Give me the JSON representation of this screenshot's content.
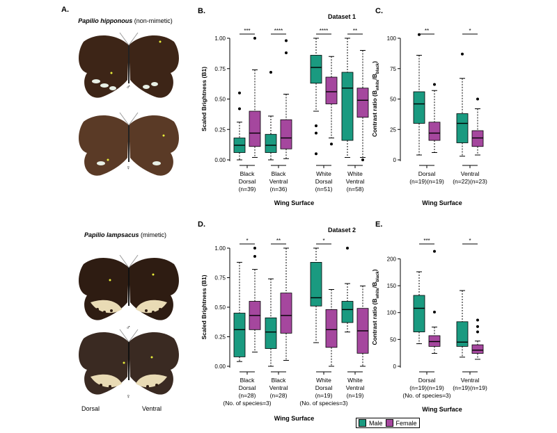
{
  "colors": {
    "male": "#1a9a80",
    "female": "#a5479e",
    "wing": "#3d2517",
    "spot": "#e8f0e6",
    "dot": "#e9ef3a"
  },
  "panel_a": {
    "letter": "A.",
    "species1": {
      "name": "Papilio hipponous",
      "note": "(non-mimetic)"
    },
    "species2": {
      "name": "Papilio lampsacus",
      "note": "(mimetic)"
    },
    "male_symbol": "♂",
    "female_symbol": "♀",
    "dorsal_label": "Dorsal",
    "ventral_label": "Ventral"
  },
  "legend": {
    "male": "Male",
    "female": "Female"
  },
  "chart_data": [
    {
      "panel": "B.",
      "type": "boxplot",
      "title": "Dataset 1",
      "ylabel": "Scaled Brightness (B1)",
      "xlabel": "Wing Surface",
      "ylim": [
        0,
        1
      ],
      "yticks": [
        "0.00",
        "0.25",
        "0.50",
        "0.75",
        "1.00"
      ],
      "groups": [
        {
          "label_lines": [
            "Black",
            "Dorsal",
            "(n=39)"
          ],
          "sig": "***",
          "boxes": [
            {
              "sex": "male",
              "min": 0.0,
              "q1": 0.06,
              "median": 0.12,
              "q3": 0.18,
              "max": 0.31,
              "outliers": [
                0.42,
                0.55
              ]
            },
            {
              "sex": "female",
              "min": 0.02,
              "q1": 0.11,
              "median": 0.22,
              "q3": 0.4,
              "max": 0.74,
              "outliers": [
                1.0
              ]
            }
          ]
        },
        {
          "label_lines": [
            "Black",
            "Ventral",
            "(n=36)"
          ],
          "sig": "****",
          "boxes": [
            {
              "sex": "male",
              "min": 0.0,
              "q1": 0.06,
              "median": 0.12,
              "q3": 0.21,
              "max": 0.36,
              "outliers": [
                0.72
              ]
            },
            {
              "sex": "female",
              "min": 0.01,
              "q1": 0.09,
              "median": 0.18,
              "q3": 0.33,
              "max": 0.54,
              "outliers": [
                0.88,
                0.98
              ]
            }
          ]
        },
        {
          "label_lines": [
            "White",
            "Dorsal",
            "(n=51)"
          ],
          "sig": "****",
          "boxes": [
            {
              "sex": "male",
              "min": 0.4,
              "q1": 0.63,
              "median": 0.76,
              "q3": 0.86,
              "max": 1.0,
              "outliers": [
                0.28,
                0.22,
                0.05
              ]
            },
            {
              "sex": "female",
              "min": 0.18,
              "q1": 0.46,
              "median": 0.56,
              "q3": 0.68,
              "max": 0.85,
              "outliers": [
                0.13
              ]
            }
          ]
        },
        {
          "label_lines": [
            "White",
            "Ventral",
            "(n=58)"
          ],
          "sig": "**",
          "boxes": [
            {
              "sex": "male",
              "min": 0.02,
              "q1": 0.16,
              "median": 0.59,
              "q3": 0.72,
              "max": 1.0,
              "outliers": []
            },
            {
              "sex": "female",
              "min": 0.02,
              "q1": 0.35,
              "median": 0.49,
              "q3": 0.59,
              "max": 0.9,
              "outliers": [
                0.0
              ]
            }
          ]
        }
      ]
    },
    {
      "panel": "C.",
      "type": "boxplot",
      "title": "",
      "ylabel": "Contrast ratio (B_white/B_black)",
      "ylabel_parts": [
        "Contrast ratio (B",
        "white",
        "/B",
        "black",
        ")"
      ],
      "xlabel": "Wing Surface",
      "ylim": [
        0,
        100
      ],
      "yticks": [
        "0",
        "25",
        "50",
        "75",
        "100"
      ],
      "groups": [
        {
          "label_lines": [
            "Dorsal",
            "(n=19)(n=19)"
          ],
          "sig": "**",
          "boxes": [
            {
              "sex": "male",
              "min": 4,
              "q1": 30,
              "median": 46,
              "q3": 56,
              "max": 86,
              "outliers": [
                103
              ]
            },
            {
              "sex": "female",
              "min": 6,
              "q1": 16,
              "median": 22,
              "q3": 31,
              "max": 57,
              "outliers": [
                62
              ]
            }
          ]
        },
        {
          "label_lines": [
            "Ventral",
            "(n=22)(n=23)"
          ],
          "sig": "*",
          "boxes": [
            {
              "sex": "male",
              "min": 3,
              "q1": 14,
              "median": 30,
              "q3": 38,
              "max": 67,
              "outliers": [
                87
              ]
            },
            {
              "sex": "female",
              "min": 4,
              "q1": 11,
              "median": 18,
              "q3": 24,
              "max": 42,
              "outliers": [
                50
              ]
            }
          ]
        }
      ]
    },
    {
      "panel": "D.",
      "type": "boxplot",
      "title": "Dataset 2",
      "ylabel": "Scaled Brightness (B1)",
      "xlabel": "Wing Surface",
      "ylim": [
        0,
        1
      ],
      "yticks": [
        "0.00",
        "0.25",
        "0.50",
        "0.75",
        "1.00"
      ],
      "groups": [
        {
          "label_lines": [
            "Black",
            "Dorsal",
            "(n=28)",
            "(No. of species=3)"
          ],
          "sig": "*",
          "boxes": [
            {
              "sex": "male",
              "min": 0.04,
              "q1": 0.08,
              "median": 0.31,
              "q3": 0.45,
              "max": 0.88,
              "outliers": []
            },
            {
              "sex": "female",
              "min": 0.12,
              "q1": 0.31,
              "median": 0.43,
              "q3": 0.55,
              "max": 0.82,
              "outliers": [
                0.93,
                1.0
              ]
            }
          ]
        },
        {
          "label_lines": [
            "Black",
            "Ventral",
            "(n=28)",
            ""
          ],
          "sig": "**",
          "boxes": [
            {
              "sex": "male",
              "min": 0.0,
              "q1": 0.15,
              "median": 0.29,
              "q3": 0.41,
              "max": 0.74,
              "outliers": []
            },
            {
              "sex": "female",
              "min": 0.05,
              "q1": 0.28,
              "median": 0.43,
              "q3": 0.62,
              "max": 1.0,
              "outliers": []
            }
          ]
        },
        {
          "label_lines": [
            "White",
            "Dorsal",
            "(n=19)",
            "(No. of species=3)"
          ],
          "sig": "*",
          "boxes": [
            {
              "sex": "male",
              "min": 0.2,
              "q1": 0.51,
              "median": 0.58,
              "q3": 0.88,
              "max": 1.0,
              "outliers": []
            },
            {
              "sex": "female",
              "min": 0.0,
              "q1": 0.16,
              "median": 0.31,
              "q3": 0.48,
              "max": 0.65,
              "outliers": []
            }
          ]
        },
        {
          "label_lines": [
            "White",
            "Ventral",
            "(n=19)",
            ""
          ],
          "sig": "",
          "boxes": [
            {
              "sex": "male",
              "min": 0.29,
              "q1": 0.37,
              "median": 0.48,
              "q3": 0.55,
              "max": 0.7,
              "outliers": [
                1.0
              ]
            },
            {
              "sex": "female",
              "min": 0.0,
              "q1": 0.11,
              "median": 0.3,
              "q3": 0.49,
              "max": 0.68,
              "outliers": []
            }
          ]
        }
      ]
    },
    {
      "panel": "E.",
      "type": "boxplot",
      "title": "",
      "ylabel": "Contrast ratio (B_white/B_black)",
      "ylabel_parts": [
        "Contrast ratio (B",
        "white",
        "/B",
        "black",
        ")"
      ],
      "xlabel": "Wing Surface",
      "ylim": [
        0,
        220
      ],
      "yticks": [
        "0",
        "50",
        "100",
        "150",
        "200"
      ],
      "groups": [
        {
          "label_lines": [
            "Dorsal",
            "(n=19)(n=19)",
            "(No. of species=3)"
          ],
          "sig": "***",
          "boxes": [
            {
              "sex": "male",
              "min": 42,
              "q1": 64,
              "median": 108,
              "q3": 132,
              "max": 176,
              "outliers": []
            },
            {
              "sex": "female",
              "min": 24,
              "q1": 37,
              "median": 46,
              "q3": 57,
              "max": 73,
              "outliers": [
                101,
                214
              ]
            }
          ]
        },
        {
          "label_lines": [
            "Ventral",
            "(n=19)(n=19)",
            ""
          ],
          "sig": "*",
          "boxes": [
            {
              "sex": "male",
              "min": 17,
              "q1": 37,
              "median": 45,
              "q3": 83,
              "max": 141,
              "outliers": []
            },
            {
              "sex": "female",
              "min": 13,
              "q1": 24,
              "median": 30,
              "q3": 40,
              "max": 47,
              "outliers": [
                64,
                74,
                86
              ]
            }
          ]
        }
      ]
    }
  ]
}
